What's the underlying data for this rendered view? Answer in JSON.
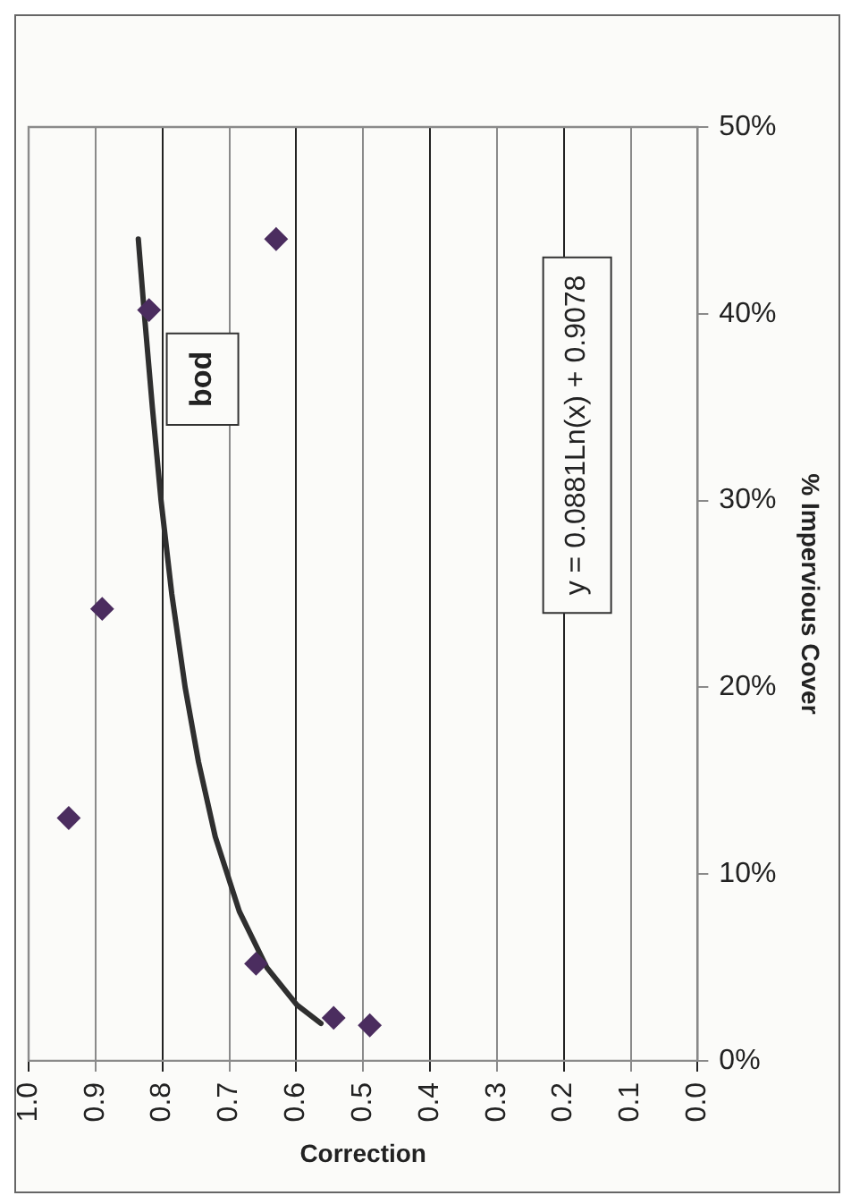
{
  "chart_data": {
    "type": "scatter",
    "xlabel": "Correction",
    "ylabel": "% Impervious Cover",
    "series": [
      {
        "type": "scatter",
        "color": "#4b2d5f",
        "x": [
          0.49,
          0.544,
          0.66,
          0.94,
          0.89,
          0.82,
          0.63
        ],
        "values": [
          0.019,
          0.023,
          0.052,
          0.13,
          0.242,
          0.402,
          0.44
        ]
      },
      {
        "type": "line",
        "color": "#2f2f2f",
        "marker": "none",
        "x": [
          0.563,
          0.599,
          0.644,
          0.685,
          0.721,
          0.746,
          0.766,
          0.786,
          0.802,
          0.815,
          0.827,
          0.836
        ],
        "values": [
          0.02,
          0.03,
          0.05,
          0.08,
          0.12,
          0.16,
          0.2,
          0.25,
          0.3,
          0.35,
          0.4,
          0.44
        ]
      }
    ],
    "marker": "diamond",
    "line_style": "solid",
    "ylim": [
      0,
      0.5
    ],
    "yticks": [
      {
        "value": 0,
        "label": "0%"
      },
      {
        "value": 0.1,
        "label": "10%"
      },
      {
        "value": 0.2,
        "label": "20%"
      },
      {
        "value": 0.3,
        "label": "30%"
      },
      {
        "value": 0.4,
        "label": "40%"
      },
      {
        "value": 0.5,
        "label": "50%"
      }
    ],
    "xlim": [
      1,
      0
    ],
    "xticks": [
      {
        "value": 0,
        "label": "0.0"
      },
      {
        "value": 0.1,
        "label": "0.1"
      },
      {
        "value": 0.2,
        "label": "0.2"
      },
      {
        "value": 0.3,
        "label": "0.3"
      },
      {
        "value": 0.4,
        "label": "0.4"
      },
      {
        "value": 0.5,
        "label": "0.5"
      },
      {
        "value": 0.6,
        "label": "0.6"
      },
      {
        "value": 0.7,
        "label": "0.7"
      },
      {
        "value": 0.8,
        "label": "0.8"
      },
      {
        "value": 0.9,
        "label": "0.9"
      },
      {
        "value": 1,
        "label": "1.0"
      }
    ],
    "grid": "x",
    "legend": false,
    "annotations": [
      "bod",
      "y = 0.0881Ln(x) + 0.9078"
    ]
  }
}
